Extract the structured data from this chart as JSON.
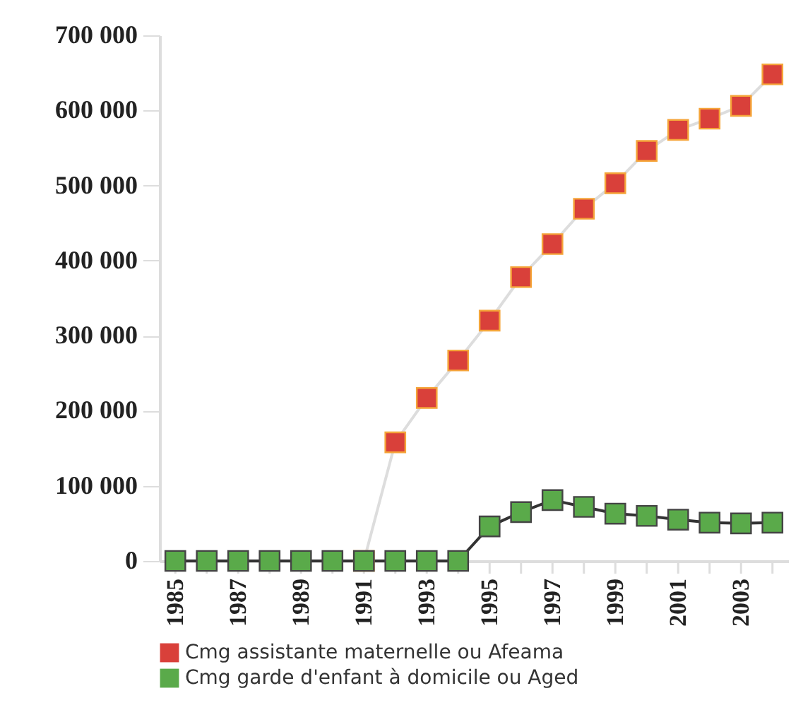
{
  "chart_data": {
    "type": "line",
    "x": [
      1985,
      1986,
      1987,
      1988,
      1989,
      1990,
      1991,
      1992,
      1993,
      1994,
      1995,
      1996,
      1997,
      1998,
      1999,
      2000,
      2001,
      2002,
      2003,
      2004
    ],
    "series": [
      {
        "name": "Cmg assistante maternelle ou Afeama",
        "color": "#d9403a",
        "values": [
          null,
          null,
          null,
          null,
          null,
          null,
          0,
          158000,
          217000,
          267000,
          320000,
          378000,
          422000,
          469000,
          503000,
          546000,
          574000,
          589000,
          606000,
          648000
        ]
      },
      {
        "name": "Cmg garde d'enfant à domicile ou Aged",
        "color": "#5aaa4a",
        "values": [
          0,
          0,
          0,
          0,
          0,
          0,
          0,
          0,
          0,
          0,
          46000,
          65000,
          81000,
          72000,
          63000,
          60000,
          55000,
          51000,
          50000,
          51000
        ]
      }
    ],
    "xlim": [
      1984.5,
      2004.5
    ],
    "xticks": [
      {
        "value": 1985,
        "label": "1985"
      },
      {
        "value": 1986,
        "label": null
      },
      {
        "value": 1987,
        "label": "1987"
      },
      {
        "value": 1988,
        "label": null
      },
      {
        "value": 1989,
        "label": "1989"
      },
      {
        "value": 1990,
        "label": null
      },
      {
        "value": 1991,
        "label": "1991"
      },
      {
        "value": 1992,
        "label": null
      },
      {
        "value": 1993,
        "label": "1993"
      },
      {
        "value": 1994,
        "label": null
      },
      {
        "value": 1995,
        "label": "1995"
      },
      {
        "value": 1996,
        "label": null
      },
      {
        "value": 1997,
        "label": "1997"
      },
      {
        "value": 1998,
        "label": null
      },
      {
        "value": 1999,
        "label": "1999"
      },
      {
        "value": 2000,
        "label": null
      },
      {
        "value": 2001,
        "label": "2001"
      },
      {
        "value": 2002,
        "label": null
      },
      {
        "value": 2003,
        "label": "2003"
      },
      {
        "value": 2004,
        "label": null
      }
    ],
    "ylim": [
      0,
      700000
    ],
    "yticks": [
      {
        "value": 0,
        "label": "0"
      },
      {
        "value": 100000,
        "label": "100 000"
      },
      {
        "value": 200000,
        "label": "200 000"
      },
      {
        "value": 300000,
        "label": "300 000"
      },
      {
        "value": 400000,
        "label": "400 000"
      },
      {
        "value": 500000,
        "label": "500 000"
      },
      {
        "value": 600000,
        "label": "600 000"
      },
      {
        "value": 700000,
        "label": "700 000"
      }
    ],
    "grid": false,
    "legend": "bottom",
    "marker": "square",
    "line_style": "solid"
  }
}
